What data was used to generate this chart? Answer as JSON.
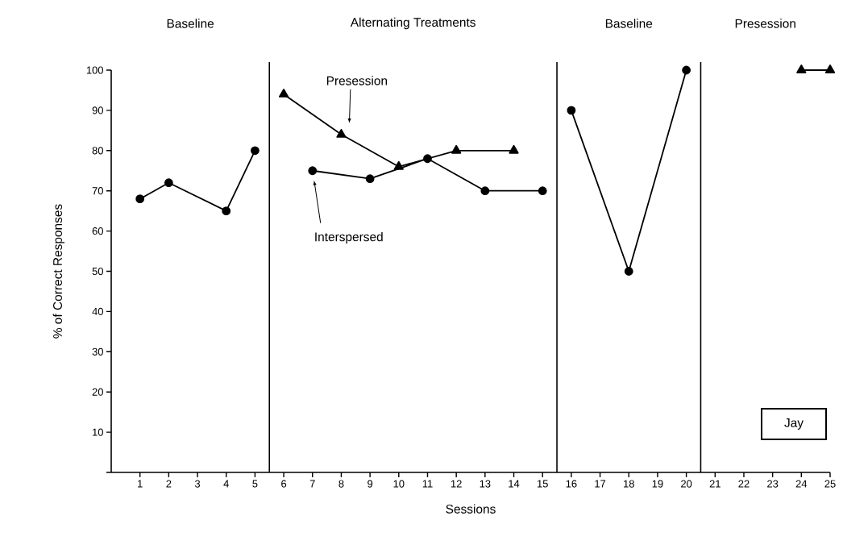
{
  "chart_data": {
    "type": "line",
    "xlabel": "Sessions",
    "ylabel": "% of Correct Responses",
    "xlim": [
      0,
      25
    ],
    "xticks": [
      1,
      2,
      3,
      4,
      5,
      6,
      7,
      8,
      9,
      10,
      11,
      12,
      13,
      14,
      15,
      16,
      17,
      18,
      19,
      20,
      21,
      22,
      23,
      24,
      25
    ],
    "ylim": [
      0,
      100
    ],
    "yticks": [
      {
        "value": 0,
        "label": null
      },
      10,
      20,
      30,
      40,
      50,
      60,
      70,
      80,
      90,
      100
    ],
    "series": [
      {
        "color": "#000000",
        "marker": "circle",
        "x": [
          1,
          2,
          4,
          5
        ],
        "values": [
          68,
          72,
          65,
          80
        ]
      },
      {
        "name": "Presession",
        "color": "#000000",
        "marker": "triangle",
        "x": [
          6,
          8,
          10,
          12,
          14
        ],
        "values": [
          94,
          84,
          76,
          80,
          80
        ]
      },
      {
        "name": "Interspersed",
        "color": "#000000",
        "marker": "circle",
        "x": [
          7,
          9,
          11,
          13,
          15
        ],
        "values": [
          75,
          73,
          78,
          70,
          70
        ]
      },
      {
        "color": "#000000",
        "marker": "circle",
        "x": [
          16,
          18,
          20
        ],
        "values": [
          90,
          50,
          100
        ]
      },
      {
        "color": "#000000",
        "marker": "triangle",
        "x": [
          24,
          25
        ],
        "values": [
          100,
          100
        ]
      }
    ],
    "ref_lines": [
      {
        "axis": "x",
        "value": 5.5
      },
      {
        "axis": "x",
        "value": 15.5
      },
      {
        "axis": "x",
        "value": 20.5
      }
    ],
    "annotations": [
      "Baseline",
      "Alternating Treatments",
      "Baseline",
      "Presession",
      "Jay"
    ]
  }
}
